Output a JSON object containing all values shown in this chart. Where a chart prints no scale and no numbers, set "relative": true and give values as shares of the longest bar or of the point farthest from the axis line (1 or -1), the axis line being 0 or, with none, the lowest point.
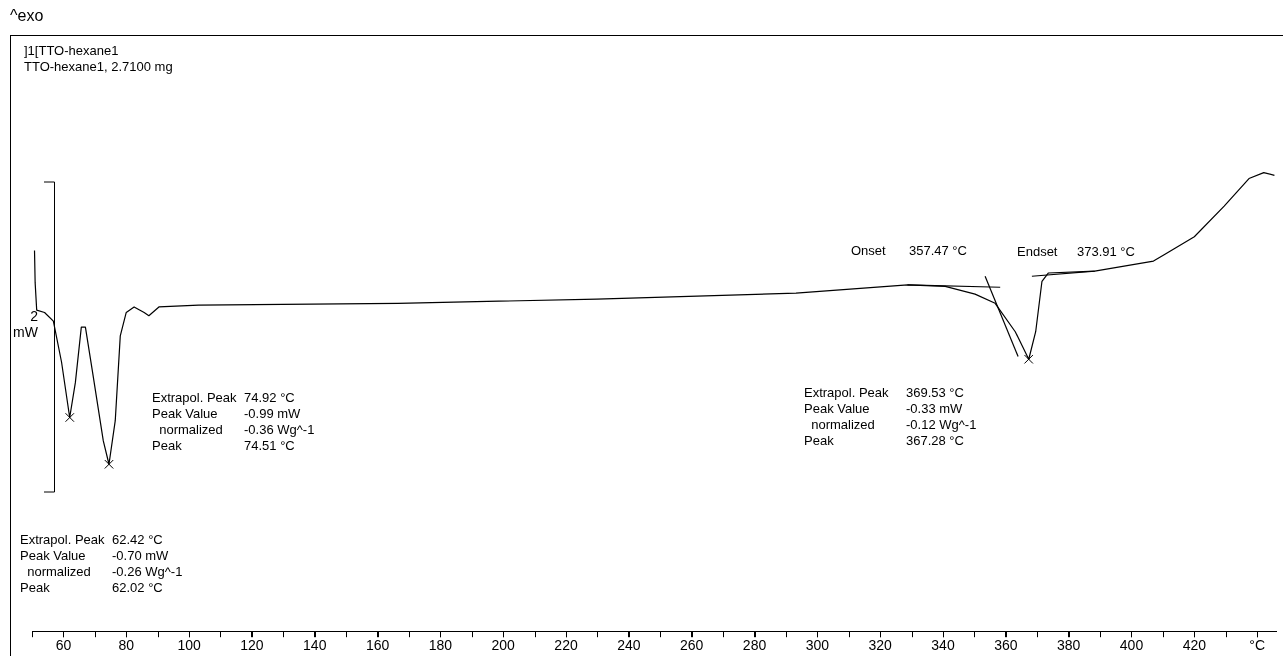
{
  "chart_data": {
    "type": "line",
    "title": "]1[TTO-hexane1",
    "subtitle": "TTO-hexane1, 2.7100 mg",
    "relative": true,
    "grid": false,
    "legend": false,
    "tick_labels": "x",
    "marker": "none",
    "line_style": "solid",
    "xlim": [
      50,
      446
    ],
    "xticks": [
      60,
      80,
      100,
      120,
      140,
      160,
      180,
      200,
      220,
      240,
      260,
      280,
      300,
      320,
      340,
      360,
      380,
      400,
      420,
      {
        "value": 440,
        "label": "°C"
      }
    ],
    "annotations": [
      "^exo",
      "2\nmW",
      "Extrapol. Peak\t74.92 °C\nPeak Value\t-0.99 mW\n  normalized\t-0.36 Wg^-1\nPeak\t74.51 °C",
      "Extrapol. Peak\t62.42 °C\nPeak Value\t-0.70 mW\n  normalized\t-0.26 Wg^-1\nPeak\t62.02 °C",
      "Extrapol. Peak\t369.53 °C\nPeak Value\t-0.33 mW\n  normalized\t-0.12 Wg^-1\nPeak\t367.28 °C",
      "Onset\t357.47 °C",
      "Endset\t373.91 °C"
    ],
    "series": [
      {
        "color": "#000000",
        "x": [
          50.8,
          51.0,
          51.5,
          54.0,
          56.8,
          59.4,
          62.0,
          63.8,
          65.7,
          67.0,
          69.2,
          72.7,
          74.5,
          76.5,
          78.1,
          80.0,
          82.5,
          85.7,
          87.2,
          90.4,
          103,
          166.5,
          229.8,
          293.2,
          328.7,
          340.7,
          350.2,
          356.6,
          363.0,
          367.3,
          369.5,
          371.5,
          373.5,
          388.3,
          407,
          420,
          429.5,
          437.4,
          442.1,
          445.5
        ],
        "values": [
          0.83,
          0.76,
          0.7,
          0.695,
          0.676,
          0.587,
          0.466,
          0.542,
          0.663,
          0.663,
          0.568,
          0.415,
          0.364,
          0.459,
          0.644,
          0.695,
          0.707,
          0.695,
          0.688,
          0.707,
          0.711,
          0.715,
          0.724,
          0.737,
          0.755,
          0.752,
          0.735,
          0.715,
          0.653,
          0.593,
          0.653,
          0.763,
          0.781,
          0.785,
          0.807,
          0.86,
          0.927,
          0.987,
          1.0,
          0.994
        ]
      },
      {
        "type": "line",
        "color": "#000000",
        "x": [
          328.7,
          358.2
        ],
        "values": [
          0.755,
          0.75
        ]
      },
      {
        "type": "line",
        "color": "#000000",
        "x": [
          353.4,
          363.9
        ],
        "values": [
          0.774,
          0.599
        ]
      },
      {
        "type": "line",
        "color": "#000000",
        "x": [
          368.3,
          388.3
        ],
        "values": [
          0.774,
          0.785
        ]
      },
      {
        "type": "scatter",
        "marker": "cross",
        "color": "#000000",
        "x": [
          62.02,
          74.51,
          367.28
        ],
        "values": [
          0.466,
          0.364,
          0.593
        ]
      }
    ]
  }
}
